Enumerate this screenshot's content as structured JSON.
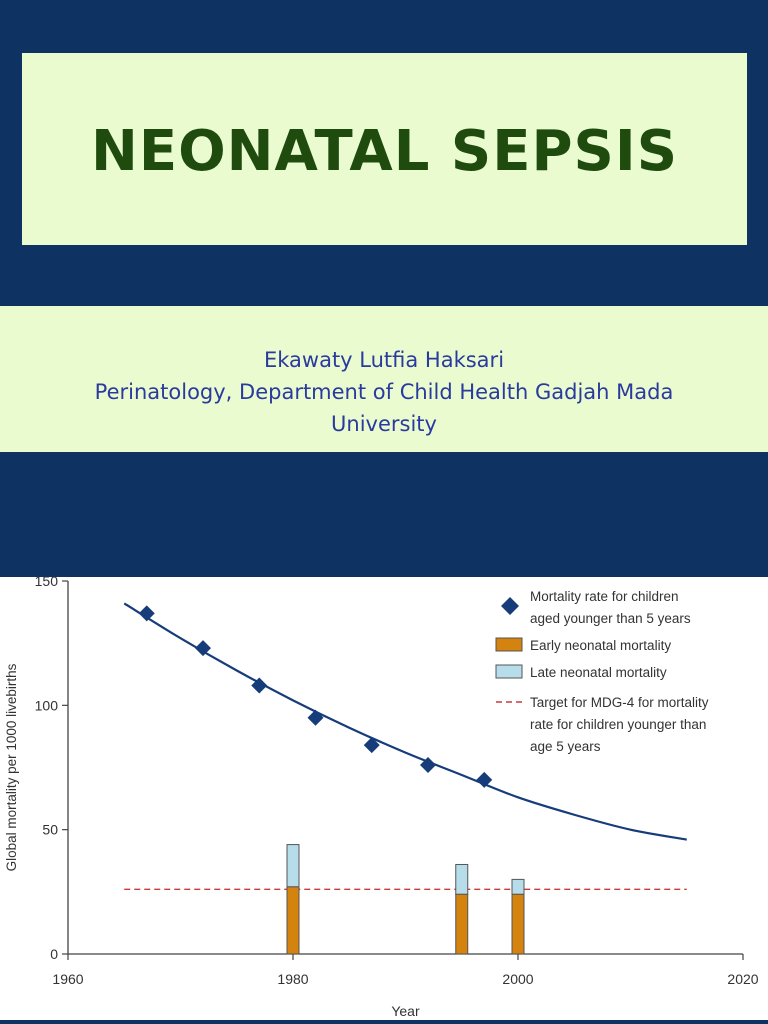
{
  "slide": {
    "title": "NEONATAL SEPSIS",
    "author": "Ekawaty Lutfia Haksari",
    "affiliation_line1": "Perinatology, Department of Child Health Gadjah Mada",
    "affiliation_line2": "University"
  },
  "colors": {
    "background": "#0e3363",
    "panel": "#e9fbcf",
    "title": "#1f4b0f",
    "subtitle": "#2b3a9e",
    "series_under5": "#163d7a",
    "early": "#d4830f",
    "late": "#b7dcea",
    "target": "#cc3a3a"
  },
  "chart_data": {
    "type": "bar",
    "xlabel": "Year",
    "ylabel": "Global mortality per 1000 livebirths",
    "xlim": [
      1960,
      2020
    ],
    "ylim": [
      0,
      150
    ],
    "x_ticks": [
      1960,
      1980,
      2000,
      2020
    ],
    "y_ticks": [
      0,
      50,
      100,
      150
    ],
    "grid": false,
    "legend_position": "top-right",
    "series": [
      {
        "name": "Mortality rate for children aged younger than 5 years",
        "kind": "scatter",
        "marker": "diamond",
        "x": [
          1967,
          1972,
          1977,
          1982,
          1987,
          1992,
          1997
        ],
        "y": [
          137,
          123,
          108,
          95,
          84,
          76,
          70
        ]
      },
      {
        "name": "Early neonatal mortality",
        "kind": "bar",
        "x": [
          1980,
          1995,
          2000
        ],
        "y": [
          27,
          24,
          24
        ]
      },
      {
        "name": "Late neonatal mortality",
        "kind": "bar",
        "stacked_on": "Early neonatal mortality",
        "x": [
          1980,
          1995,
          2000
        ],
        "y": [
          17,
          12,
          6
        ]
      },
      {
        "name": "Target for MDG-4 for mortality rate for children younger than age 5 years",
        "kind": "line",
        "style": "dashed",
        "x": [
          1965,
          2015
        ],
        "y": [
          26,
          26
        ]
      }
    ],
    "trend": {
      "kind": "line",
      "x": [
        1965,
        1970,
        1975,
        1980,
        1985,
        1990,
        1995,
        2000,
        2005,
        2010,
        2015
      ],
      "y": [
        141,
        127,
        114,
        102,
        91,
        81,
        72,
        63,
        56,
        50,
        46
      ]
    },
    "legend_lines": [
      [
        "Mortality rate for children",
        "aged younger than 5 years"
      ],
      [
        "Early neonatal mortality"
      ],
      [
        "Late neonatal mortality"
      ],
      [
        "Target for MDG-4 for mortality",
        "rate for children younger than",
        "age 5 years"
      ]
    ]
  }
}
